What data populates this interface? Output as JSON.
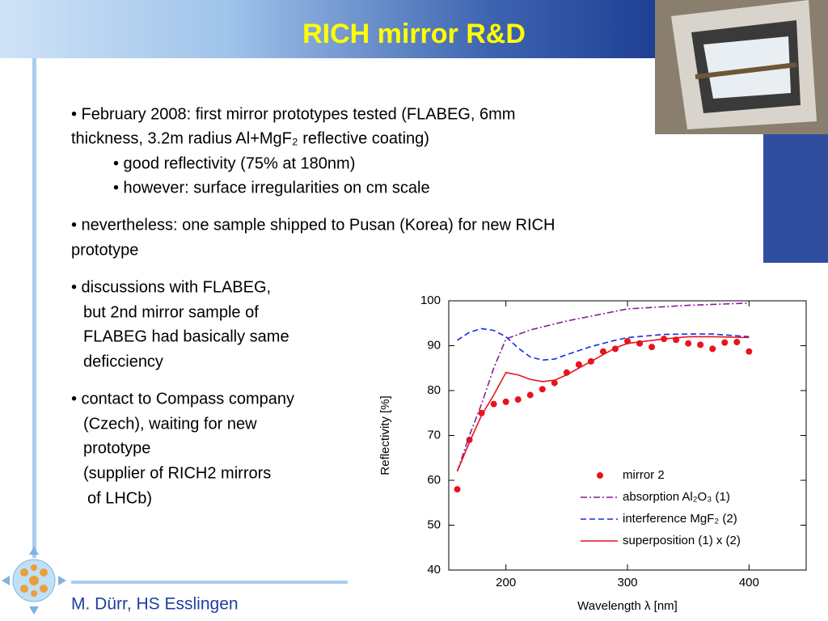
{
  "header": {
    "title": "RICH mirror R&D"
  },
  "body": {
    "lines": [
      "• February 2008: first mirror prototypes tested (FLABEG, 6mm",
      "thickness, 3.2m radius  Al+MgF₂ reflective coating)",
      "• good reflectivity (75% at 180nm)",
      "• however: surface irregularities on cm scale",
      "• nevertheless: one sample shipped to Pusan (Korea) for new RICH",
      "prototype",
      "• discussions with FLABEG,",
      "but 2nd mirror sample of",
      "FLABEG had basically same",
      "deficciency",
      "• contact to Compass company",
      "(Czech), waiting for new",
      "prototype",
      "(supplier of RICH2 mirrors",
      "of LHCb)"
    ]
  },
  "footer": {
    "author": "M. Dürr, HS Esslingen"
  },
  "chart_data": {
    "type": "line",
    "x_label": "Wavelength λ [nm]",
    "y_label": "Reflectivity [%]",
    "xlim": [
      153,
      447
    ],
    "xticks": [
      200,
      300,
      400
    ],
    "ylim": [
      40,
      100
    ],
    "yticks": [
      40,
      50,
      60,
      70,
      80,
      90,
      100
    ],
    "legend": "lower right",
    "series": [
      {
        "name": "mirror 2",
        "color": "#e8141c",
        "style": "markers",
        "x": [
          160,
          170,
          180,
          190,
          200,
          210,
          220,
          230,
          240,
          250,
          260,
          270,
          280,
          290,
          300,
          310,
          320,
          330,
          340,
          350,
          360,
          370,
          380,
          390,
          400
        ],
        "values": [
          58,
          69,
          75,
          77,
          77.5,
          78,
          79,
          80.3,
          81.7,
          84,
          85.8,
          86.5,
          88.7,
          89.3,
          91,
          90.5,
          89.7,
          91.5,
          91.3,
          90.5,
          90.2,
          89.3,
          90.7,
          90.8,
          88.7
        ]
      },
      {
        "name": "absorption Al₂O₃    (1)",
        "color": "#8b1a9a",
        "style": "dashdot",
        "x": [
          160,
          170,
          180,
          190,
          200,
          220,
          250,
          300,
          350,
          400
        ],
        "values": [
          62,
          70,
          77,
          85,
          91.5,
          93.5,
          95.5,
          98.2,
          99,
          99.5
        ]
      },
      {
        "name": "interference MgF₂   (2)",
        "color": "#1a2be0",
        "style": "dashed",
        "x": [
          160,
          170,
          180,
          190,
          200,
          210,
          220,
          230,
          240,
          250,
          270,
          290,
          300,
          330,
          350,
          370,
          400
        ],
        "values": [
          91.2,
          93,
          93.8,
          93.4,
          92,
          89.5,
          87.5,
          86.8,
          87,
          88,
          89.8,
          91.2,
          91.8,
          92.5,
          92.6,
          92.6,
          92
        ]
      },
      {
        "name": "superposition (1) x (2)",
        "color": "#e8141c",
        "style": "solid",
        "x": [
          160,
          170,
          180,
          190,
          200,
          210,
          220,
          230,
          240,
          250,
          270,
          290,
          300,
          330,
          350,
          370,
          400
        ],
        "values": [
          62,
          68.5,
          74.5,
          79,
          84,
          83.5,
          82.5,
          82,
          82.3,
          83.5,
          86.5,
          89.5,
          90.5,
          91.5,
          92,
          92,
          91.8
        ]
      }
    ]
  }
}
